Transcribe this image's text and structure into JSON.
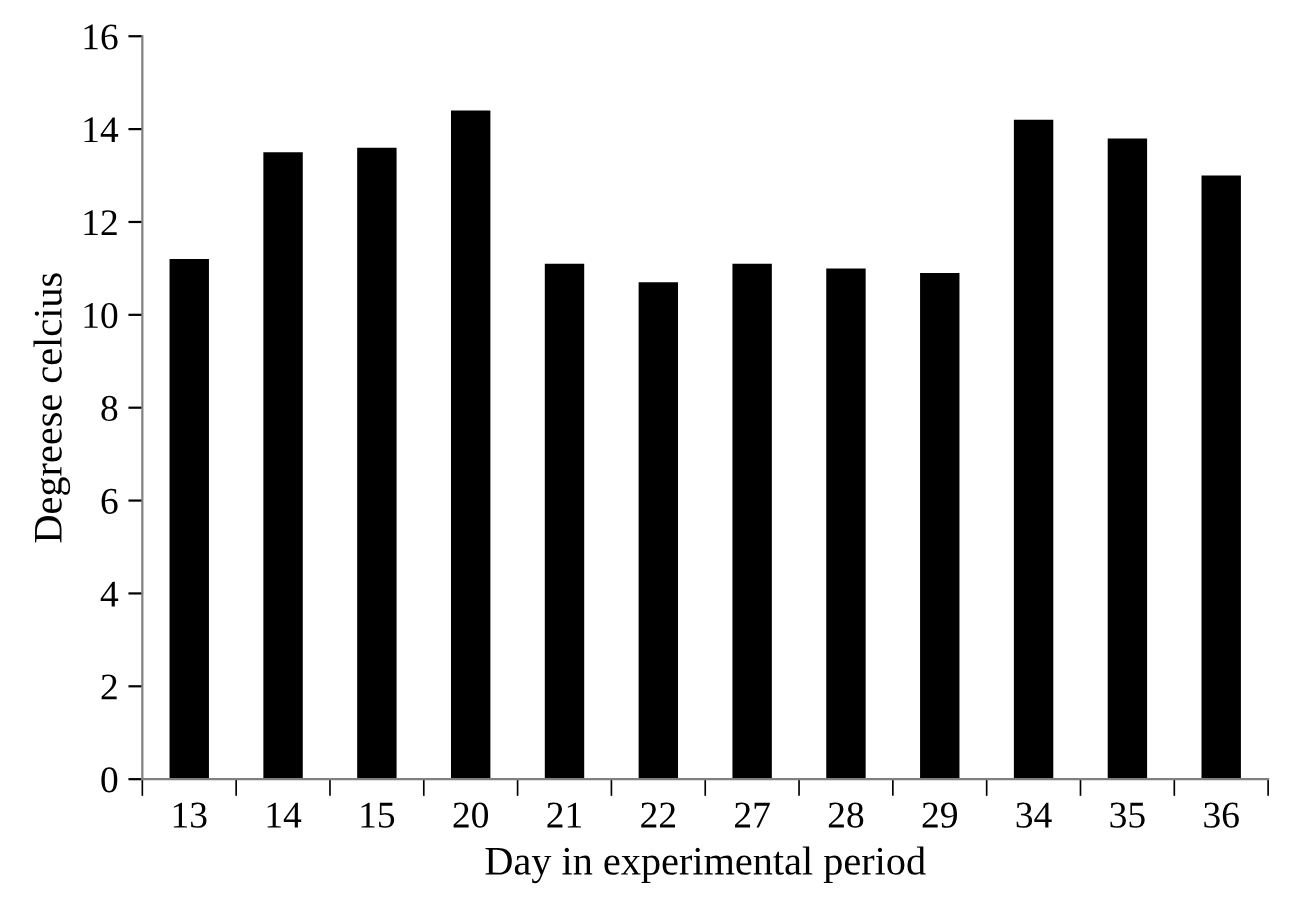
{
  "chart_data": {
    "type": "bar",
    "xlabel": "Day in experimental period",
    "ylabel": "Degreese celcius",
    "categories": [
      "13",
      "14",
      "15",
      "20",
      "21",
      "22",
      "27",
      "28",
      "29",
      "34",
      "35",
      "36"
    ],
    "values": [
      11.2,
      13.5,
      13.6,
      14.4,
      11.1,
      10.7,
      11.1,
      11.0,
      10.9,
      14.2,
      13.8,
      13.0
    ],
    "color": "#000000",
    "ylim": [
      0,
      16
    ],
    "yticks": [
      0,
      2,
      4,
      6,
      8,
      10,
      12,
      14,
      16
    ],
    "grid": false,
    "legend": false
  }
}
